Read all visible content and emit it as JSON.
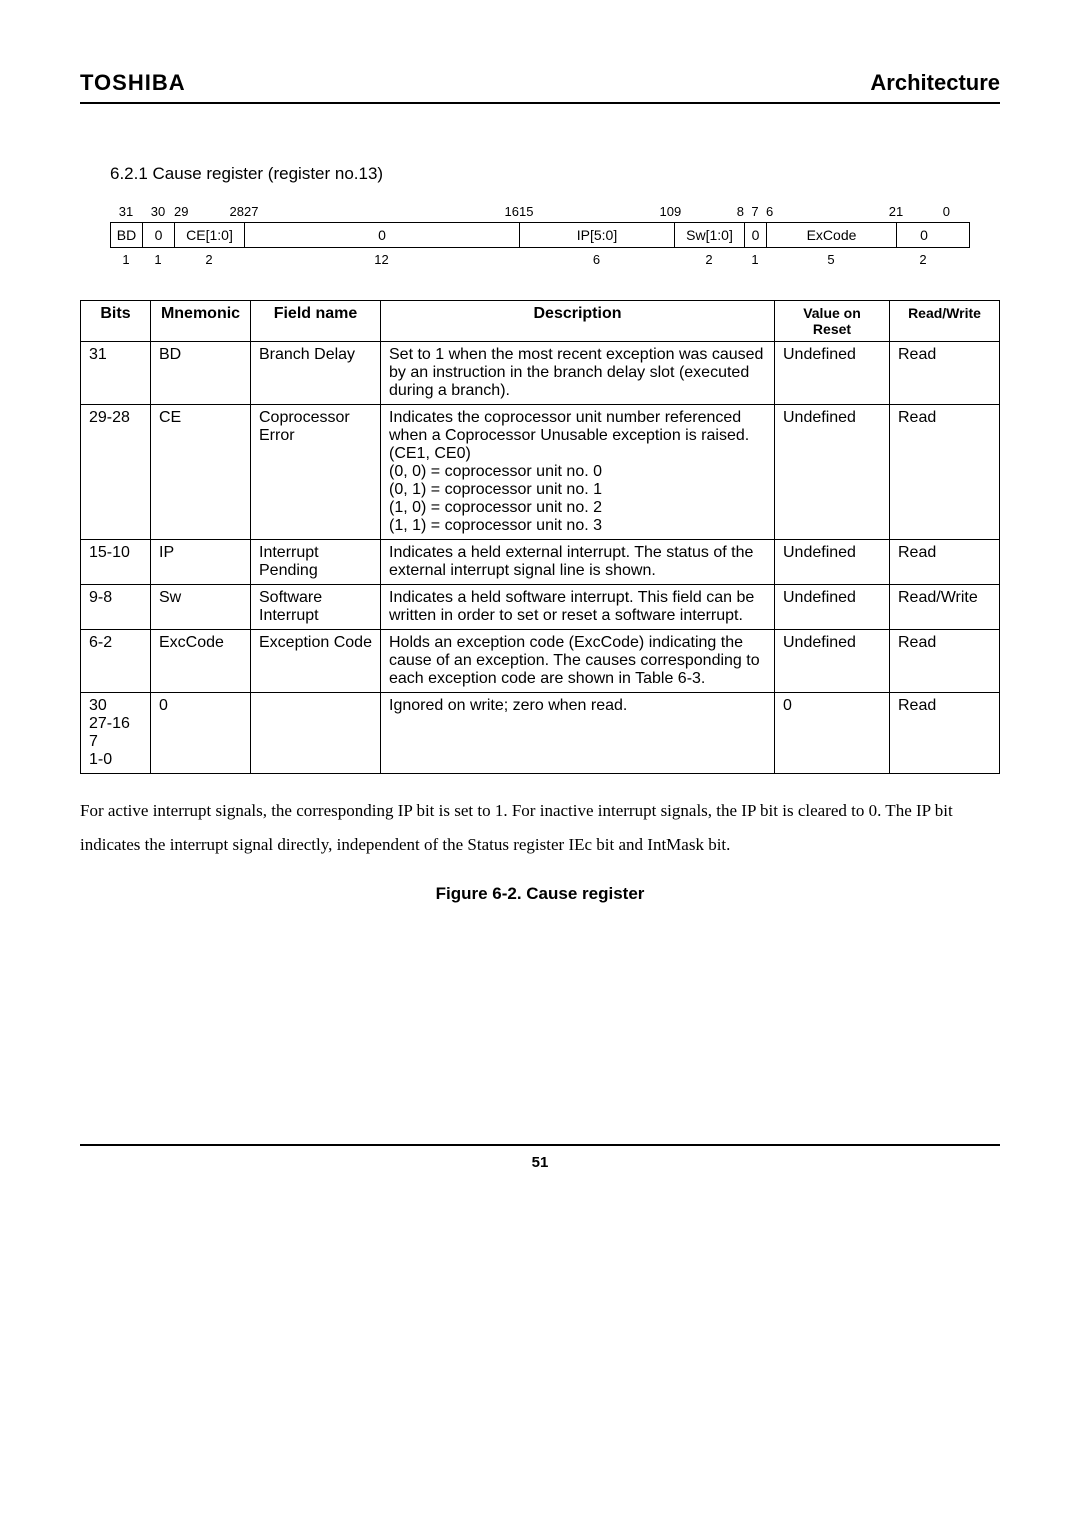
{
  "header": {
    "brand": "TOSHIBA",
    "section": "Architecture"
  },
  "subsection": "6.2.1   Cause register (register no.13)",
  "bits_layout": {
    "top_labels": [
      "31",
      "30",
      "29",
      "28",
      "27",
      "16",
      "15",
      "10",
      "9",
      "8",
      "7",
      "6",
      "2",
      "1",
      "0"
    ],
    "boxes": [
      "BD",
      "0",
      "CE[1:0]",
      "0",
      "IP[5:0]",
      "Sw[1:0]",
      "0",
      "ExCode",
      "0"
    ],
    "widths": [
      "1",
      "1",
      "2",
      "12",
      "6",
      "2",
      "1",
      "5",
      "2"
    ]
  },
  "table": {
    "headers": [
      "Bits",
      "Mnemonic",
      "Field name",
      "Description",
      "Value on Reset",
      "Read/Write"
    ],
    "rows": [
      {
        "bits": "31",
        "mnem": "BD",
        "fname": "Branch Delay",
        "desc": "Set to 1 when the most recent exception was caused by an instruction in the branch delay slot (executed during a branch).",
        "val": "Undefined",
        "rw": "Read"
      },
      {
        "bits": "29-28",
        "mnem": "CE",
        "fname": "Coprocessor Error",
        "desc": "Indicates the coprocessor unit number referenced when a Coprocessor Unusable exception is raised. (CE1, CE0)\n(0, 0) = coprocessor unit no. 0\n(0, 1) = coprocessor unit no. 1\n(1, 0) = coprocessor unit no. 2\n(1, 1) = coprocessor unit no. 3",
        "val": "Undefined",
        "rw": "Read"
      },
      {
        "bits": "15-10",
        "mnem": "IP",
        "fname": "Interrupt Pending",
        "desc": "Indicates a held external interrupt. The status of the external interrupt signal line is shown.",
        "val": "Undefined",
        "rw": "Read"
      },
      {
        "bits": "9-8",
        "mnem": "Sw",
        "fname": "Software Interrupt",
        "desc": "Indicates a held software interrupt. This field can be written in order to set or reset a software interrupt.",
        "val": "Undefined",
        "rw": "Read/Write"
      },
      {
        "bits": "6-2",
        "mnem": "ExcCode",
        "fname": "Exception Code",
        "desc": "Holds an exception code (ExcCode) indicating the cause of an exception. The causes corresponding to each exception code are shown in Table 6-3.",
        "val": "Undefined",
        "rw": "Read"
      },
      {
        "bits": "30\n27-16\n7\n1-0",
        "mnem": "0",
        "fname": "",
        "desc": "Ignored on write; zero when read.",
        "val": "0",
        "rw": "Read"
      }
    ]
  },
  "paragraph": "For active interrupt signals, the corresponding IP bit is set to 1.   For inactive interrupt signals, the IP bit is cleared to 0.   The IP bit indicates the interrupt signal directly, independent of the Status register IEc bit and IntMask bit.",
  "caption": "Figure 6-2. Cause register",
  "page_number": "51"
}
